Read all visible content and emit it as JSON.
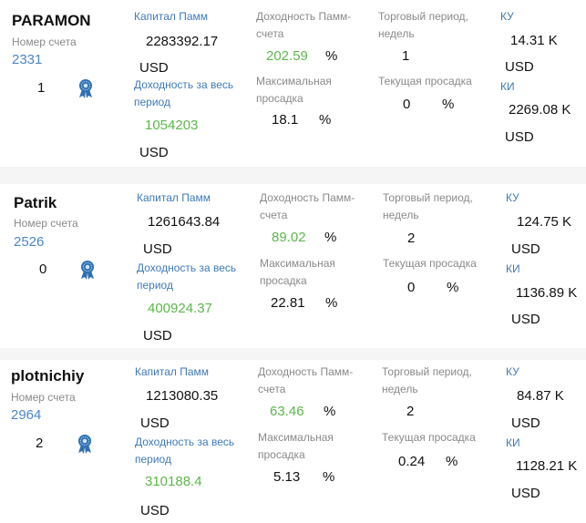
{
  "labels": {
    "account_number": "Номер счета",
    "capital": "Капитал Памм",
    "return_total": "Доходность за весь период",
    "return_pamm": "Доходность Памм-счета",
    "max_drawdown": "Максимальная просадка",
    "trading_period": "Торговый период, недель",
    "current_drawdown": "Текущая просадка",
    "ku": "КУ",
    "ki": "КИ",
    "usd": "USD",
    "percent": "%"
  },
  "colors": {
    "green": "#5cb84a",
    "link_blue": "#4a86c5",
    "label_gray": "#8a8a8a",
    "badge_blue": "#2f6fb0"
  },
  "accounts": [
    {
      "name": "PARAMON",
      "account_number": "2331",
      "rank": "1",
      "capital": "2283392.17",
      "return_total": "1054203",
      "return_pamm": "202.59",
      "max_drawdown": "18.1",
      "trading_period": "1",
      "current_drawdown": "0",
      "ku": "14.31 K",
      "ki": "2269.08 K",
      "badge_icon": "award-badge-icon"
    },
    {
      "name": "Patrik",
      "account_number": "2526",
      "rank": "0",
      "capital": "1261643.84",
      "return_total": "400924.37",
      "return_pamm": "89.02",
      "max_drawdown": "22.81",
      "trading_period": "2",
      "current_drawdown": "0",
      "ku": "124.75 K",
      "ki": "1136.89 K",
      "badge_icon": "award-badge-icon"
    },
    {
      "name": "plotnichiy",
      "account_number": "2964",
      "rank": "2",
      "capital": "1213080.35",
      "return_total": "310188.4",
      "return_pamm": "63.46",
      "max_drawdown": "5.13",
      "trading_period": "2",
      "current_drawdown": "0.24",
      "ku": "84.87 K",
      "ki": "1128.21 K",
      "badge_icon": "award-badge-icon"
    }
  ]
}
